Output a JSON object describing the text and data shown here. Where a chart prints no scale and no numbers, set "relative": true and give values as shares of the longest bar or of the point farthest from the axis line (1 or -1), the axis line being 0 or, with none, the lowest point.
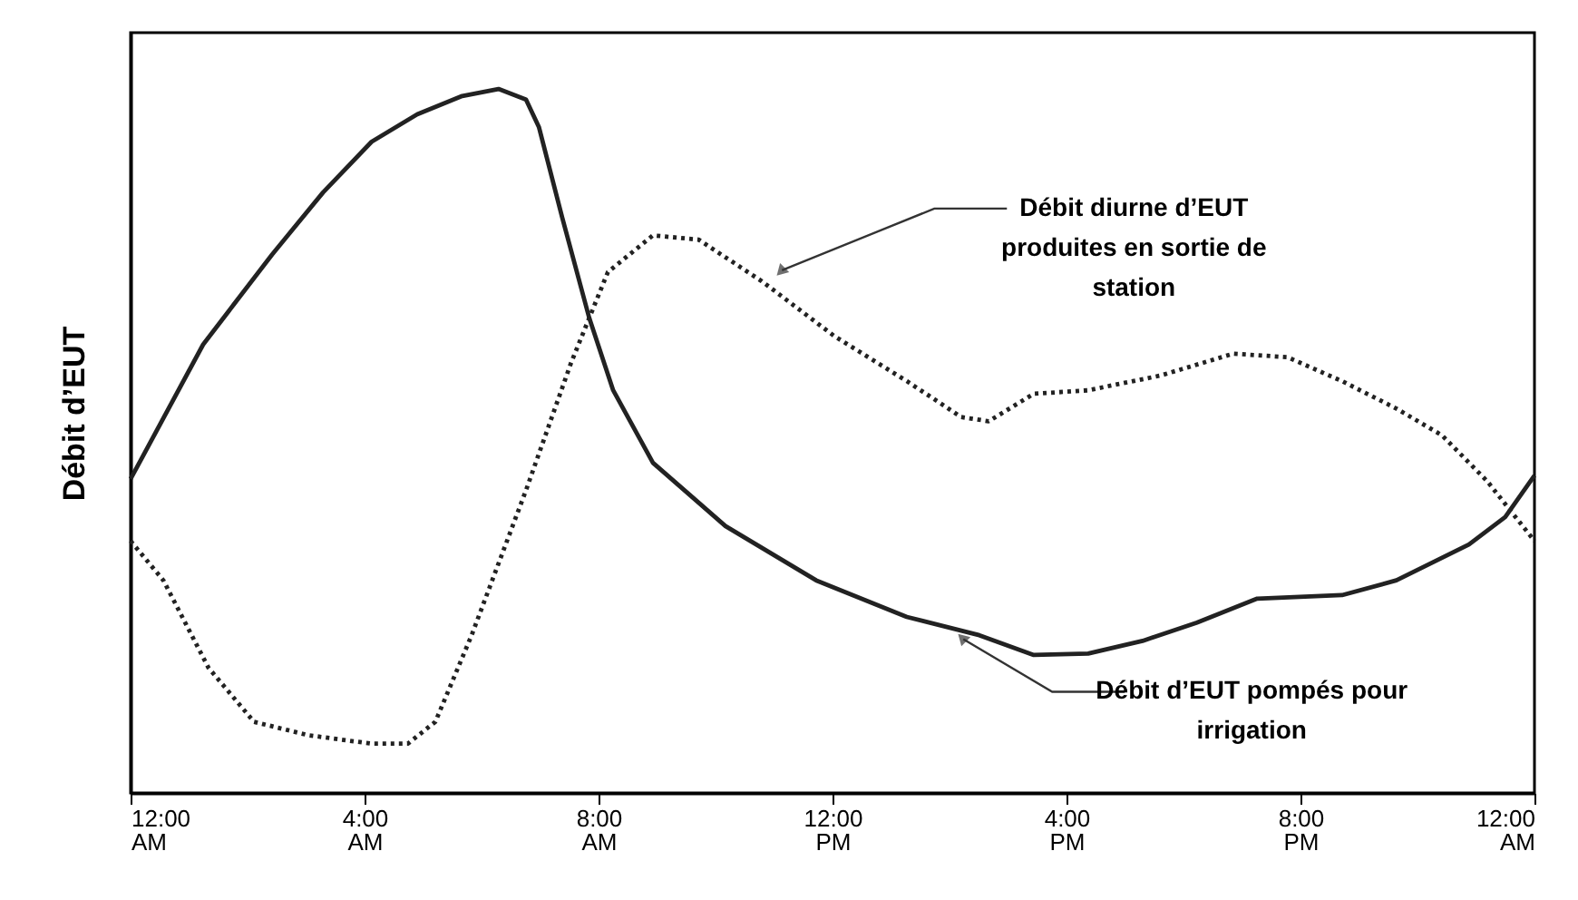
{
  "chart_data": {
    "type": "line",
    "relative": true,
    "ylabel": "Débit d’EUT",
    "xlim": [
      0,
      24
    ],
    "xticks": [
      {
        "value": 0,
        "label": "12:00 AM"
      },
      {
        "value": 4,
        "label": "4:00 AM"
      },
      {
        "value": 8,
        "label": "8:00 AM"
      },
      {
        "value": 12,
        "label": "12:00 PM"
      },
      {
        "value": 16,
        "label": "4:00 PM"
      },
      {
        "value": 20,
        "label": "8:00 PM"
      },
      {
        "value": 24,
        "label": "12:00 AM"
      }
    ],
    "grid": false,
    "marker": "none",
    "series": [
      {
        "color": "#222222",
        "line_style": "solid",
        "x": [
          0,
          1.24,
          2.42,
          3.29,
          4.12,
          4.9,
          5.67,
          6.29,
          6.76,
          6.98,
          7.38,
          7.84,
          8.25,
          8.93,
          10.17,
          11.72,
          13.27,
          14.51,
          15.44,
          16.37,
          17.3,
          18.23,
          19.26,
          20.71,
          21.64,
          22.88,
          23.5,
          24
        ],
        "values": [
          0.446,
          0.637,
          0.765,
          0.853,
          0.925,
          0.964,
          0.99,
          1.0,
          0.985,
          0.946,
          0.817,
          0.675,
          0.572,
          0.469,
          0.379,
          0.302,
          0.25,
          0.224,
          0.196,
          0.198,
          0.216,
          0.242,
          0.276,
          0.281,
          0.302,
          0.353,
          0.392,
          0.451
        ]
      },
      {
        "color": "#222222",
        "line_style": "dotted",
        "x": [
          0,
          0.56,
          1.33,
          2.11,
          3.04,
          4.12,
          4.74,
          5.21,
          5.83,
          6.76,
          7.53,
          8.16,
          8.93,
          9.71,
          10.79,
          12.03,
          13.27,
          14.2,
          14.67,
          15.44,
          16.37,
          17.61,
          18.85,
          19.78,
          20.71,
          21.64,
          22.42,
          23.19,
          24
        ],
        "values": [
          0.358,
          0.302,
          0.178,
          0.101,
          0.082,
          0.07,
          0.07,
          0.101,
          0.224,
          0.43,
          0.611,
          0.74,
          0.792,
          0.786,
          0.727,
          0.649,
          0.585,
          0.534,
          0.528,
          0.567,
          0.572,
          0.593,
          0.624,
          0.619,
          0.585,
          0.546,
          0.508,
          0.443,
          0.358
        ]
      }
    ],
    "annotations": [
      {
        "text": "Débit diurne d’EUT produites en sortie de station",
        "x": 10.95,
        "y": 0.727
      },
      {
        "text": "Débit d’EUT pompés pour irrigation",
        "x": 14.05,
        "y": 0.234
      }
    ]
  }
}
